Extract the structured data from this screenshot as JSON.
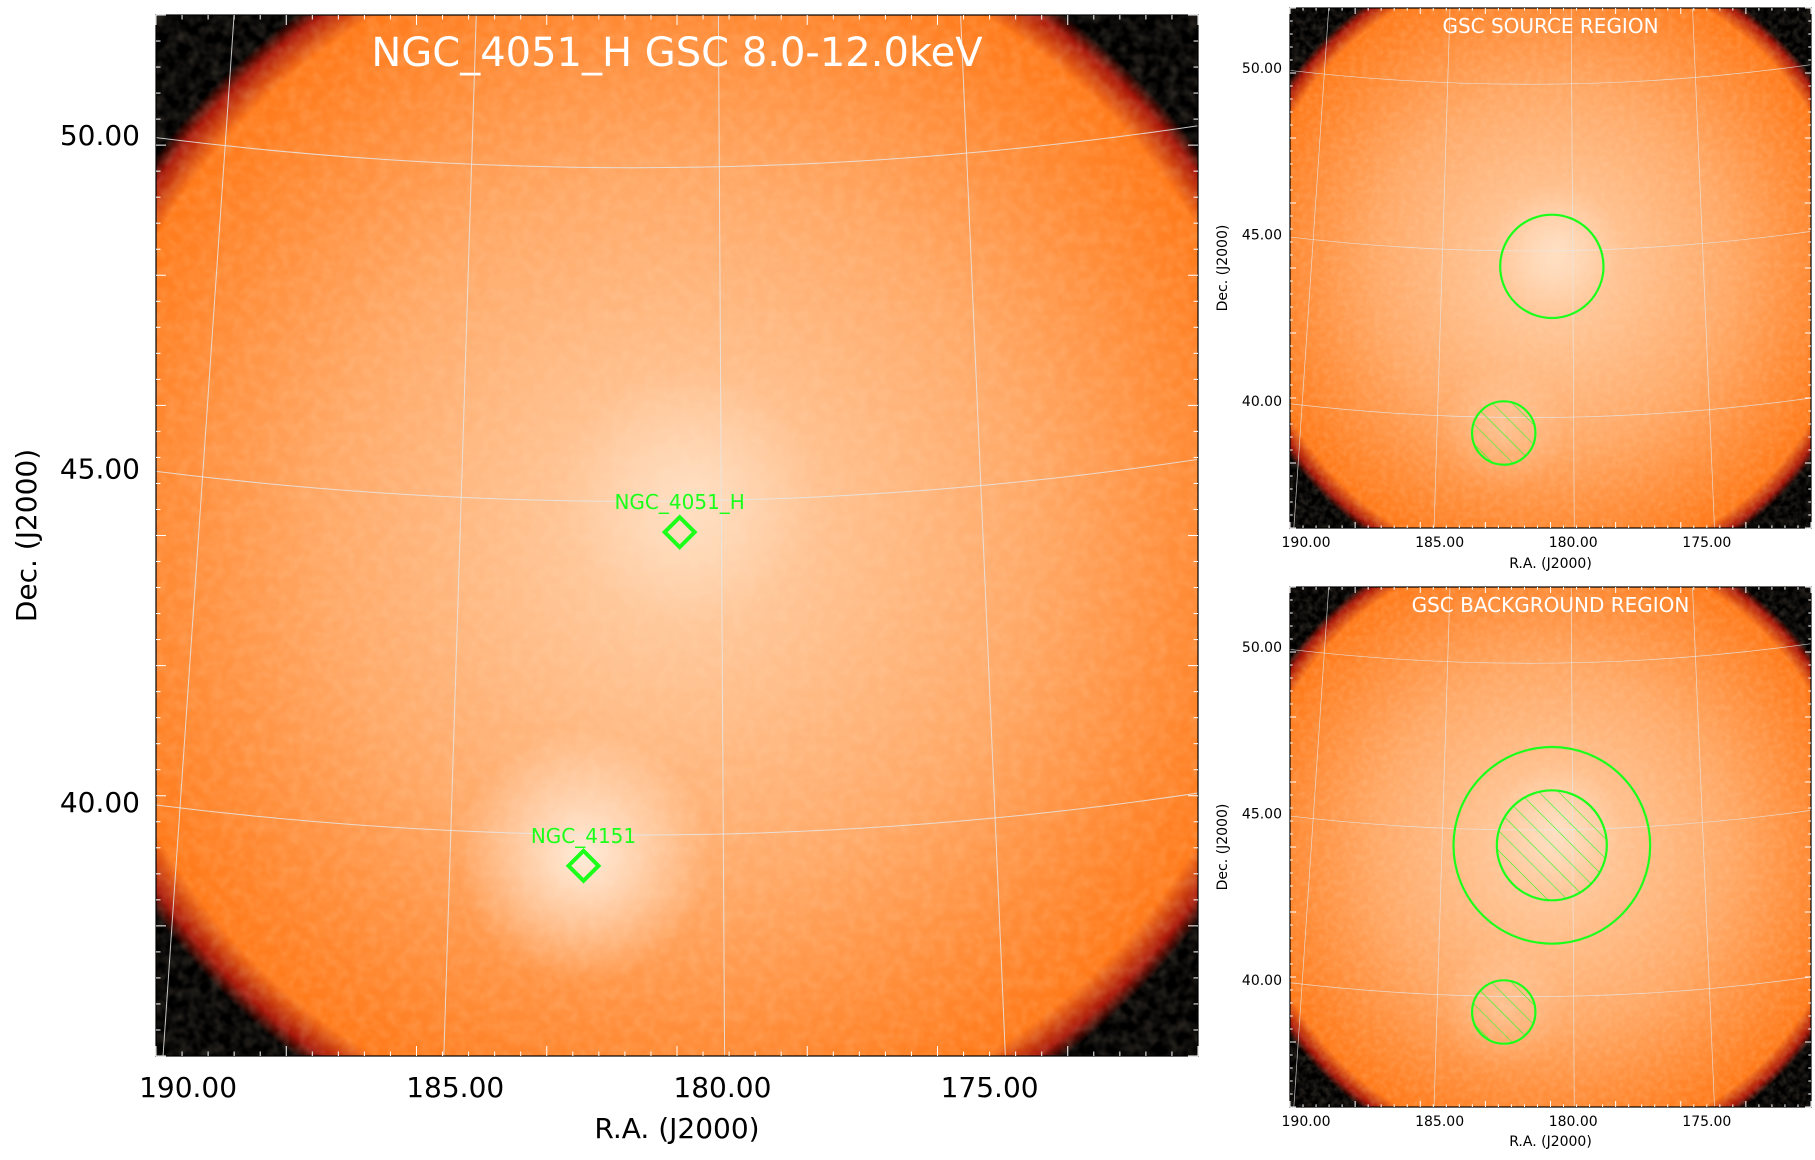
{
  "colors": {
    "background_sky": "#000000",
    "disk_core": "#ffd2ac",
    "disk_mid": "#ffa866",
    "disk_edge": "#ff7a1a",
    "disk_rim": "#a8180a",
    "grid": "#e6e6e6",
    "region": "#1bff1b",
    "title_text": "#ffffff",
    "axis_text": "#000000"
  },
  "chart_data": [
    {
      "type": "heatmap",
      "panel": "main",
      "title": "NGC_4051_H GSC 8.0-12.0keV",
      "xlabel": "R.A. (J2000)",
      "ylabel": "Dec. (J2000)",
      "xlim": [
        190.6,
        171.1
      ],
      "ylim": [
        36.2,
        51.8
      ],
      "xticks": [
        "190.00",
        "185.00",
        "180.00",
        "175.00"
      ],
      "yticks": [
        "40.00",
        "45.00",
        "50.00"
      ],
      "ra_grid": [
        190,
        185,
        180,
        175
      ],
      "dec_grid": [
        40,
        45,
        50
      ],
      "field_center": {
        "ra": 180.8,
        "dec": 44.0,
        "radius_deg": 9.7
      },
      "bright_spots": [
        {
          "ra": 182.6,
          "dec": 39.2,
          "strength": 0.9
        },
        {
          "ra": 180.6,
          "dec": 44.6,
          "strength": 0.45
        }
      ],
      "sources": [
        {
          "name": "NGC_4051_H",
          "ra": 180.8,
          "dec": 44.05
        },
        {
          "name": "NGC_4151",
          "ra": 182.6,
          "dec": 39.05
        }
      ],
      "grid": true
    },
    {
      "type": "heatmap",
      "panel": "source",
      "title": "GSC SOURCE REGION",
      "xlabel": "R.A. (J2000)",
      "ylabel": "Dec. (J2000)",
      "xlim": [
        190.6,
        171.1
      ],
      "ylim": [
        36.2,
        51.8
      ],
      "xticks": [
        "190.00",
        "185.00",
        "180.00",
        "175.00"
      ],
      "yticks": [
        "40.00",
        "45.00",
        "50.00"
      ],
      "ra_grid": [
        190,
        185,
        180,
        175
      ],
      "dec_grid": [
        40,
        45,
        50
      ],
      "field_center": {
        "ra": 180.8,
        "dec": 44.0,
        "radius_deg": 9.7
      },
      "bright_spots": [
        {
          "ra": 182.6,
          "dec": 39.2,
          "strength": 0.3
        },
        {
          "ra": 180.6,
          "dec": 44.6,
          "strength": 0.45
        }
      ],
      "regions": [
        {
          "kind": "circle",
          "ra": 180.8,
          "dec": 44.05,
          "radius_deg": 1.55,
          "hatched": false
        },
        {
          "kind": "circle",
          "ra": 182.6,
          "dec": 39.05,
          "radius_deg": 0.95,
          "hatched": true
        }
      ],
      "grid": true
    },
    {
      "type": "heatmap",
      "panel": "background",
      "title": "GSC BACKGROUND REGION",
      "xlabel": "R.A. (J2000)",
      "ylabel": "Dec. (J2000)",
      "xlim": [
        190.6,
        171.1
      ],
      "ylim": [
        36.2,
        51.8
      ],
      "xticks": [
        "190.00",
        "185.00",
        "180.00",
        "175.00"
      ],
      "yticks": [
        "40.00",
        "45.00",
        "50.00"
      ],
      "ra_grid": [
        190,
        185,
        180,
        175
      ],
      "dec_grid": [
        40,
        45,
        50
      ],
      "field_center": {
        "ra": 180.8,
        "dec": 44.0,
        "radius_deg": 9.7
      },
      "bright_spots": [
        {
          "ra": 182.6,
          "dec": 39.2,
          "strength": 0.3
        },
        {
          "ra": 180.6,
          "dec": 44.6,
          "strength": 0.45
        }
      ],
      "regions": [
        {
          "kind": "circle",
          "ra": 180.8,
          "dec": 44.05,
          "radius_deg": 2.95,
          "hatched": false
        },
        {
          "kind": "circle",
          "ra": 180.8,
          "dec": 44.05,
          "radius_deg": 1.65,
          "hatched": true
        },
        {
          "kind": "circle",
          "ra": 182.6,
          "dec": 39.05,
          "radius_deg": 0.95,
          "hatched": true
        }
      ],
      "grid": true
    }
  ]
}
